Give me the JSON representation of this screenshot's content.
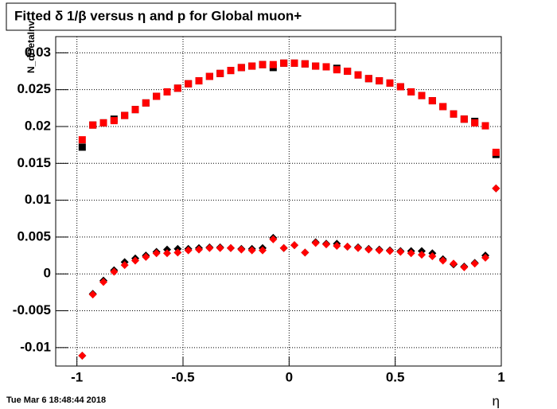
{
  "chart_data": {
    "type": "scatter",
    "title": "Fitted δ 1/β versus η and p for Global muon+",
    "x_label": "η",
    "y_label": "N_dBetaInv",
    "annotations": [
      "Tue Mar  6 18:48:44 2018"
    ],
    "x": [
      -0.975,
      -0.925,
      -0.875,
      -0.825,
      -0.775,
      -0.725,
      -0.675,
      -0.625,
      -0.575,
      -0.525,
      -0.475,
      -0.425,
      -0.375,
      -0.325,
      -0.275,
      -0.225,
      -0.175,
      -0.125,
      -0.075,
      -0.025,
      0.025,
      0.075,
      0.125,
      0.175,
      0.225,
      0.275,
      0.325,
      0.375,
      0.425,
      0.475,
      0.525,
      0.575,
      0.625,
      0.675,
      0.725,
      0.775,
      0.825,
      0.875,
      0.925,
      0.975
    ],
    "series": [
      {
        "color": "#000000",
        "marker": "square",
        "values": [
          0.0172,
          0.0202,
          0.0205,
          0.021,
          0.0215,
          0.0223,
          0.0232,
          0.0241,
          0.0247,
          0.0252,
          0.0258,
          0.0262,
          0.0268,
          0.0272,
          0.0276,
          0.028,
          0.0282,
          0.0284,
          0.028,
          0.0286,
          0.0286,
          0.0285,
          0.0282,
          0.0281,
          0.0279,
          0.0275,
          0.027,
          0.0265,
          0.0262,
          0.0259,
          0.0254,
          0.0247,
          0.0242,
          0.0235,
          0.0227,
          0.0217,
          0.021,
          0.0207,
          0.0201,
          0.0162
        ]
      },
      {
        "color": "#ff0000",
        "marker": "square",
        "values": [
          0.0182,
          0.0202,
          0.0205,
          0.0208,
          0.0215,
          0.0223,
          0.0232,
          0.0241,
          0.0247,
          0.0252,
          0.0258,
          0.0262,
          0.0268,
          0.0272,
          0.0276,
          0.028,
          0.0282,
          0.0284,
          0.0284,
          0.0286,
          0.0286,
          0.0285,
          0.0282,
          0.0281,
          0.0277,
          0.0275,
          0.027,
          0.0265,
          0.0262,
          0.0259,
          0.0254,
          0.0247,
          0.0242,
          0.0235,
          0.0227,
          0.0217,
          0.021,
          0.0205,
          0.0201,
          0.0165
        ]
      },
      {
        "color": "#000000",
        "marker": "diamond",
        "values": [
          -0.0111,
          -0.0027,
          -0.0009,
          0.0005,
          0.0016,
          0.0021,
          0.0025,
          0.003,
          0.0033,
          0.0034,
          0.0034,
          0.0035,
          0.0036,
          0.0036,
          0.0035,
          0.0034,
          0.0034,
          0.0035,
          0.0049,
          0.0035,
          0.0039,
          0.0029,
          0.0043,
          0.0041,
          0.0041,
          0.0037,
          0.0036,
          0.0034,
          0.0033,
          0.0032,
          0.0031,
          0.0031,
          0.0031,
          0.0028,
          0.002,
          0.0013,
          0.001,
          0.0015,
          0.0025,
          0.0116
        ]
      },
      {
        "color": "#ff0000",
        "marker": "diamond",
        "values": [
          -0.0111,
          -0.0028,
          -0.0011,
          0.0003,
          0.0012,
          0.0018,
          0.0023,
          0.0028,
          0.0028,
          0.0029,
          0.0032,
          0.0033,
          0.0035,
          0.0035,
          0.0035,
          0.0033,
          0.0032,
          0.0032,
          0.0047,
          0.0035,
          0.0039,
          0.0029,
          0.0042,
          0.004,
          0.0038,
          0.0037,
          0.0035,
          0.0033,
          0.0032,
          0.0031,
          0.003,
          0.0028,
          0.0026,
          0.0024,
          0.0018,
          0.0014,
          0.0009,
          0.0014,
          0.0022,
          0.0116
        ]
      }
    ],
    "xlim": [
      -1.1,
      1.0
    ],
    "ylim": [
      -0.0125,
      0.0322
    ],
    "xticks": [
      -1,
      -0.5,
      0,
      0.5,
      1
    ],
    "yticks": [
      -0.01,
      -0.005,
      0,
      0.005,
      0.01,
      0.015,
      0.02,
      0.025,
      0.03
    ],
    "grid": true
  }
}
